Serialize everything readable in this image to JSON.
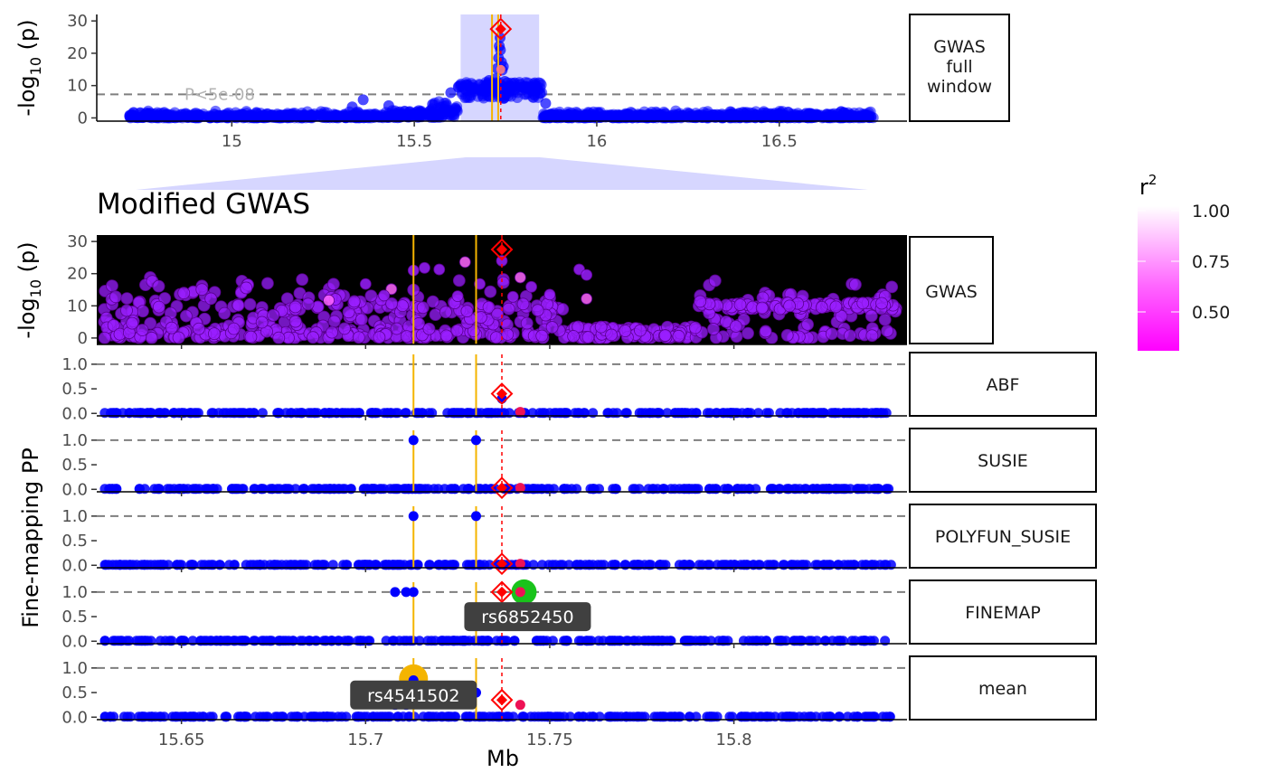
{
  "colors": {
    "snp": "#0000ff",
    "lead": "#ff0000",
    "consensus": "#f4b400",
    "window_highlight": "#d6d6ff",
    "panel_black": "#000000",
    "sig_line": "#7f7f7f",
    "gwas_purple": "#9a1fff",
    "finemap_green": "#19c31b",
    "label_bg": "#404040"
  },
  "annotations": {
    "pval_threshold_label": "P<5e-08",
    "zoom_title": "Modified GWAS",
    "xlabel": "Mb",
    "fine_mapping_ylabel": "Fine-mapping PP",
    "log_p_ylabel_base": "-log",
    "log_p_ylabel_sub": "10",
    "log_p_ylabel_end": " (p)"
  },
  "legend": {
    "title": "r",
    "title_sup": "2",
    "ticks": [
      "1.00",
      "0.75",
      "0.50"
    ],
    "placement": "right"
  },
  "chart_data": [
    {
      "type": "scatter",
      "id": "overview",
      "facet_label": [
        "GWAS",
        "full",
        "window"
      ],
      "x_ticks": [
        "15",
        "15.5",
        "16",
        "16.5"
      ],
      "x_tick_values": [
        15.0,
        15.5,
        16.0,
        16.5
      ],
      "xlim": [
        14.63,
        16.85
      ],
      "y_ticks": [
        "0",
        "10",
        "20",
        "30"
      ],
      "y_tick_values": [
        0,
        10,
        20,
        30
      ],
      "ylim": [
        -1,
        32
      ],
      "sig_threshold": 7.3,
      "highlight_window": [
        15.627,
        15.842
      ],
      "consensus_lines": [
        15.713,
        15.73
      ],
      "lead_snp": {
        "x": 15.737,
        "y": 27.5
      },
      "peak_points": [
        {
          "x": 15.735,
          "y": 24.8
        },
        {
          "x": 15.733,
          "y": 22.2
        },
        {
          "x": 15.736,
          "y": 21.0
        },
        {
          "x": 15.731,
          "y": 18.5
        },
        {
          "x": 15.739,
          "y": 17.2
        },
        {
          "x": 15.727,
          "y": 15.3
        },
        {
          "x": 15.741,
          "y": 14.8
        },
        {
          "x": 15.744,
          "y": 15.9
        },
        {
          "x": 15.722,
          "y": 12.1
        },
        {
          "x": 15.748,
          "y": 11.3
        },
        {
          "x": 15.705,
          "y": 11.6
        },
        {
          "x": 15.698,
          "y": 10.3
        },
        {
          "x": 15.755,
          "y": 10.9
        },
        {
          "x": 15.764,
          "y": 9.8
        },
        {
          "x": 15.685,
          "y": 8.6
        },
        {
          "x": 15.66,
          "y": 9.5
        },
        {
          "x": 15.81,
          "y": 9.6
        },
        {
          "x": 15.83,
          "y": 8.8
        },
        {
          "x": 15.645,
          "y": 10.2
        },
        {
          "x": 15.79,
          "y": 10.4
        },
        {
          "x": 15.36,
          "y": 5.6
        },
        {
          "x": 15.33,
          "y": 3.4
        },
        {
          "x": 15.43,
          "y": 3.8
        },
        {
          "x": 15.86,
          "y": 4.5
        },
        {
          "x": 15.6,
          "y": 7.8
        },
        {
          "x": 15.55,
          "y": 4.2
        }
      ]
    },
    {
      "type": "scatter",
      "id": "gwas_zoom",
      "facet_label": [
        "GWAS"
      ],
      "y_ticks": [
        "0",
        "10",
        "20",
        "30"
      ],
      "y_tick_values": [
        0,
        10,
        20,
        30
      ],
      "ylim": [
        -2,
        32
      ],
      "lead_snp": {
        "x": 15.737,
        "y": 27.5
      },
      "peak_points": [
        {
          "x": 15.737,
          "y": 24.0
        },
        {
          "x": 15.742,
          "y": 18.8
        },
        {
          "x": 15.72,
          "y": 21.3
        },
        {
          "x": 15.713,
          "y": 21.0
        },
        {
          "x": 15.7,
          "y": 16.8
        },
        {
          "x": 15.727,
          "y": 23.6
        },
        {
          "x": 15.758,
          "y": 21.3
        },
        {
          "x": 15.76,
          "y": 19.6
        },
        {
          "x": 15.716,
          "y": 21.8
        },
        {
          "x": 15.707,
          "y": 15.2
        },
        {
          "x": 15.731,
          "y": 16.8
        },
        {
          "x": 15.745,
          "y": 15.9
        },
        {
          "x": 15.75,
          "y": 13.5
        },
        {
          "x": 15.76,
          "y": 12.2
        },
        {
          "x": 15.705,
          "y": 13.2
        },
        {
          "x": 15.74,
          "y": 12.8
        },
        {
          "x": 15.725,
          "y": 13.0
        },
        {
          "x": 15.69,
          "y": 11.7
        }
      ]
    },
    {
      "type": "scatter",
      "id": "ABF",
      "facet_label": [
        "ABF"
      ],
      "y_ticks": [
        "0.0",
        "0.5",
        "1.0"
      ],
      "y_tick_values": [
        0,
        0.5,
        1.0
      ],
      "ylim": [
        -0.05,
        1.2
      ],
      "lead_snp": {
        "x": 15.737,
        "y": 0.4
      },
      "points": [
        {
          "x": 15.737,
          "y": 0.3
        },
        {
          "x": 15.742,
          "y": 0.03
        }
      ]
    },
    {
      "type": "scatter",
      "id": "SUSIE",
      "facet_label": [
        "SUSIE"
      ],
      "y_ticks": [
        "0.0",
        "0.5",
        "1.0"
      ],
      "y_tick_values": [
        0,
        0.5,
        1.0
      ],
      "ylim": [
        -0.05,
        1.2
      ],
      "lead_snp": {
        "x": 15.737,
        "y": 0.03
      },
      "points": [
        {
          "x": 15.713,
          "y": 1.0
        },
        {
          "x": 15.73,
          "y": 1.0
        },
        {
          "x": 15.742,
          "y": 0.03
        }
      ]
    },
    {
      "type": "scatter",
      "id": "POLYFUN_SUSIE",
      "facet_label": [
        "POLYFUN_SUSIE"
      ],
      "y_ticks": [
        "0.0",
        "0.5",
        "1.0"
      ],
      "y_tick_values": [
        0,
        0.5,
        1.0
      ],
      "ylim": [
        -0.05,
        1.2
      ],
      "lead_snp": {
        "x": 15.737,
        "y": 0.03
      },
      "points": [
        {
          "x": 15.713,
          "y": 1.0
        },
        {
          "x": 15.73,
          "y": 1.0
        },
        {
          "x": 15.742,
          "y": 0.03
        }
      ]
    },
    {
      "type": "scatter",
      "id": "FINEMAP",
      "facet_label": [
        "FINEMAP"
      ],
      "y_ticks": [
        "0.0",
        "0.5",
        "1.0"
      ],
      "y_tick_values": [
        0,
        0.5,
        1.0
      ],
      "ylim": [
        -0.05,
        1.2
      ],
      "lead_snp": {
        "x": 15.737,
        "y": 1.0
      },
      "points": [
        {
          "x": 15.708,
          "y": 1.0
        },
        {
          "x": 15.711,
          "y": 1.0
        },
        {
          "x": 15.713,
          "y": 1.0
        },
        {
          "x": 15.742,
          "y": 1.0
        }
      ],
      "label_snp": {
        "text": "rs6852450",
        "x": 15.743,
        "y": 1.0
      }
    },
    {
      "type": "scatter",
      "id": "mean",
      "facet_label": [
        "mean"
      ],
      "y_ticks": [
        "0.0",
        "0.5",
        "1.0"
      ],
      "y_tick_values": [
        0,
        0.5,
        1.0
      ],
      "ylim": [
        -0.05,
        1.2
      ],
      "lead_snp": {
        "x": 15.737,
        "y": 0.35
      },
      "points": [
        {
          "x": 15.713,
          "y": 0.75
        },
        {
          "x": 15.73,
          "y": 0.5
        },
        {
          "x": 15.708,
          "y": 0.25
        },
        {
          "x": 15.711,
          "y": 0.25
        },
        {
          "x": 15.742,
          "y": 0.25
        }
      ],
      "label_snp": {
        "text": "rs4541502",
        "x": 15.713,
        "y": 0.75
      }
    }
  ],
  "zoom_axis": {
    "x_ticks": [
      "15.65",
      "15.7",
      "15.75",
      "15.8"
    ],
    "x_tick_values": [
      15.65,
      15.7,
      15.75,
      15.8
    ],
    "xlim": [
      15.627,
      15.847
    ],
    "consensus_lines": [
      15.713,
      15.73
    ],
    "lead_x": 15.737
  }
}
